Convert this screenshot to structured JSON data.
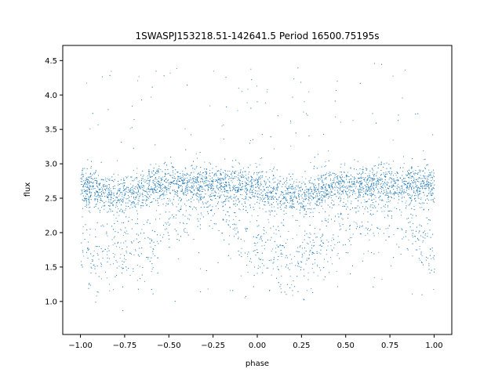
{
  "chart_data": {
    "type": "scatter",
    "title": "1SWASPJ153218.51-142641.5 Period 16500.75195s",
    "xlabel": "phase",
    "ylabel": "flux",
    "xlim": [
      -1.1,
      1.1
    ],
    "ylim": [
      0.52,
      4.72
    ],
    "xticks": [
      -1.0,
      -0.75,
      -0.5,
      -0.25,
      0.0,
      0.25,
      0.5,
      0.75,
      1.0
    ],
    "xtick_labels": [
      "−1.00",
      "−0.75",
      "−0.50",
      "−0.25",
      "0.00",
      "0.25",
      "0.50",
      "0.75",
      "1.00"
    ],
    "yticks": [
      1.0,
      1.5,
      2.0,
      2.5,
      3.0,
      3.5,
      4.0,
      4.5
    ],
    "ytick_labels": [
      "1.0",
      "1.5",
      "2.0",
      "2.5",
      "3.0",
      "3.5",
      "4.0",
      "4.5"
    ],
    "grid": false,
    "marker_color": "#1f77b4",
    "series": [
      {
        "phase": [
          -1.0,
          -0.9,
          -0.8,
          -0.7,
          -0.6,
          -0.5,
          -0.4,
          -0.3,
          -0.2,
          -0.1,
          0.0,
          0.1,
          0.2,
          0.3,
          0.4,
          0.5,
          0.6,
          0.7,
          0.8,
          0.9,
          1.0
        ],
        "flux_core": [
          2.68,
          2.62,
          2.55,
          2.6,
          2.68,
          2.72,
          2.7,
          2.72,
          2.7,
          2.66,
          2.64,
          2.58,
          2.52,
          2.58,
          2.66,
          2.7,
          2.68,
          2.72,
          2.7,
          2.68,
          2.68
        ],
        "flux_dip": [
          1.75,
          1.7,
          1.65,
          1.75,
          1.9,
          2.1,
          2.3,
          2.4,
          2.4,
          2.1,
          1.8,
          1.68,
          1.62,
          1.75,
          1.9,
          2.1,
          2.3,
          2.4,
          2.3,
          2.0,
          1.75
        ]
      }
    ]
  }
}
